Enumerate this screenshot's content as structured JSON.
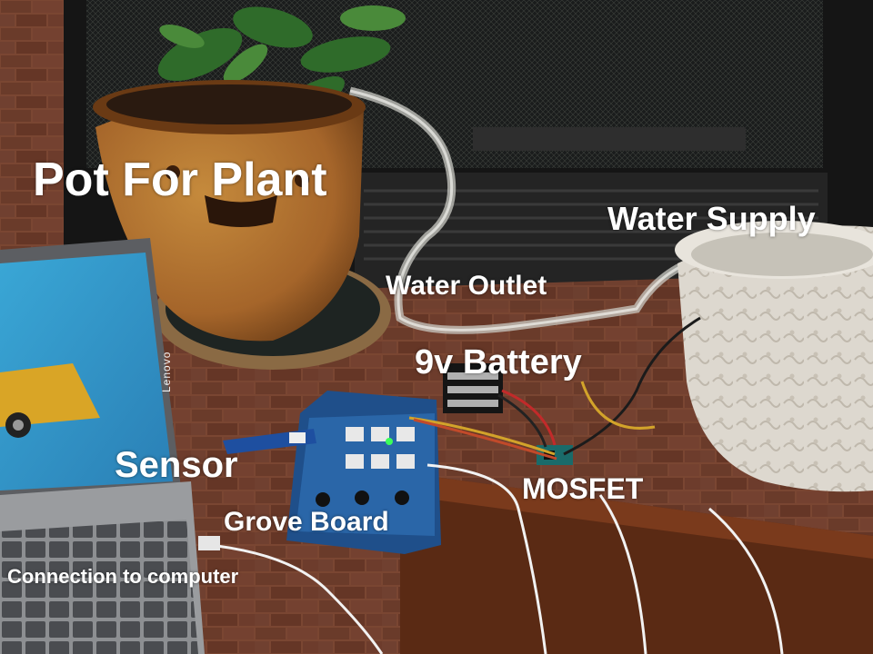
{
  "labels": {
    "pot": "Pot For Plant",
    "water_supply": "Water Supply",
    "water_outlet": "Water Outlet",
    "battery": "9v Battery",
    "sensor": "Sensor",
    "mosfet": "MOSFET",
    "grove_board": "Grove Board",
    "computer": "Connection to computer"
  },
  "laptop_brand": "Lenovo"
}
